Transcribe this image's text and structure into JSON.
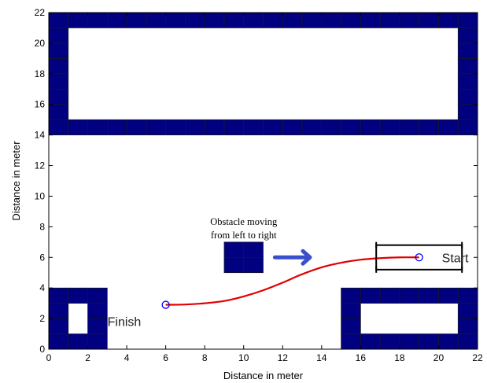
{
  "chart_data": {
    "type": "line",
    "title": "",
    "xlabel": "Distance in meter",
    "ylabel": "Distance in meter",
    "xlim": [
      0,
      22
    ],
    "ylim": [
      0,
      22
    ],
    "xticks": [
      0,
      2,
      4,
      6,
      8,
      10,
      12,
      14,
      16,
      18,
      20,
      22
    ],
    "yticks": [
      0,
      2,
      4,
      6,
      8,
      10,
      12,
      14,
      16,
      18,
      20,
      22
    ],
    "grid": false,
    "colors": {
      "wall_fill": "#000080",
      "wall_edge": "#1a1a1a",
      "path": "#e00000",
      "marker": "#0000ff",
      "arrow": "#3a4fcc",
      "vehicle_box": "#000000"
    },
    "obstacles": [
      {
        "name": "top-wall",
        "cells": {
          "x0": 0,
          "y0": 14,
          "cols": 22,
          "rows": 8
        },
        "hollow": {
          "x0": 1,
          "y0": 15,
          "cols": 20,
          "rows": 6
        }
      },
      {
        "name": "bottom-left-wall",
        "cells": {
          "x0": 0,
          "y0": 0,
          "cols": 3,
          "rows": 4
        },
        "hollow": {
          "x0": 1,
          "y0": 1,
          "cols": 1,
          "rows": 2
        }
      },
      {
        "name": "bottom-right-wall",
        "cells": {
          "x0": 15,
          "y0": 0,
          "cols": 7,
          "rows": 4
        },
        "hollow": {
          "x0": 16,
          "y0": 1,
          "cols": 5,
          "rows": 2
        }
      },
      {
        "name": "moving-obstacle",
        "cells": {
          "x0": 9,
          "y0": 5,
          "cols": 2,
          "rows": 2
        },
        "hollow": null
      }
    ],
    "series": [
      {
        "x": [
          6.0,
          7.0,
          8.0,
          9.0,
          10.0,
          11.0,
          12.0,
          13.0,
          14.0,
          15.0,
          16.0,
          17.0,
          18.0,
          19.0
        ],
        "y": [
          2.9,
          2.92,
          3.0,
          3.15,
          3.45,
          3.85,
          4.35,
          4.9,
          5.35,
          5.65,
          5.85,
          5.95,
          6.0,
          6.0
        ]
      }
    ],
    "markers": [
      {
        "label": "Start",
        "x": 19,
        "y": 6
      },
      {
        "label": "Finish",
        "x": 6,
        "y": 2.9
      }
    ],
    "vehicle": {
      "x0": 16.8,
      "y0": 5.2,
      "x1": 21.2,
      "y1": 6.8
    },
    "annotation": {
      "lines": [
        "Obstacle moving",
        "from left to right"
      ],
      "x": 10,
      "y": 9,
      "arrow": {
        "x0": 11.6,
        "x1": 13.4,
        "y": 6
      }
    }
  }
}
